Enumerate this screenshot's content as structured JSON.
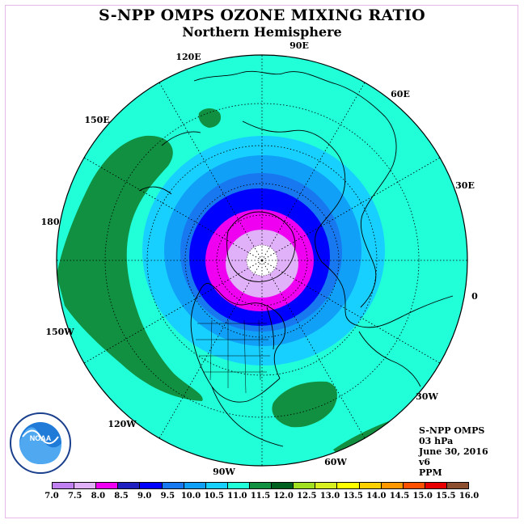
{
  "title": "S-NPP OMPS OZONE MIXING RATIO",
  "subtitle": "Northern Hemisphere",
  "longitude_labels": [
    {
      "text": "120E",
      "name": "lon-label-120e"
    },
    {
      "text": "90E",
      "name": "lon-label-90e"
    },
    {
      "text": "60E",
      "name": "lon-label-60e"
    },
    {
      "text": "150E",
      "name": "lon-label-150e"
    },
    {
      "text": "30E",
      "name": "lon-label-30e"
    },
    {
      "text": "180",
      "name": "lon-label-180"
    },
    {
      "text": "0",
      "name": "lon-label-0"
    },
    {
      "text": "150W",
      "name": "lon-label-150w"
    },
    {
      "text": "30W",
      "name": "lon-label-30w"
    },
    {
      "text": "120W",
      "name": "lon-label-120w"
    },
    {
      "text": "60W",
      "name": "lon-label-60w"
    },
    {
      "text": "90W",
      "name": "lon-label-90w"
    }
  ],
  "info": {
    "instrument": "S-NPP OMPS",
    "level": "03 hPa",
    "date": "June 30, 2016",
    "version": "v6",
    "units": "PPM"
  },
  "logo": {
    "text": "NOAA"
  },
  "colorbar": {
    "ticks": [
      "7.0",
      "7.5",
      "8.0",
      "8.5",
      "9.0",
      "9.5",
      "10.0",
      "10.5",
      "11.0",
      "11.5",
      "12.0",
      "12.5",
      "13.0",
      "13.5",
      "14.0",
      "14.5",
      "15.0",
      "15.5",
      "16.0"
    ],
    "colors": [
      "#c080f0",
      "#e0b0f8",
      "#f000f0",
      "#2020c0",
      "#0000ff",
      "#1878f0",
      "#10a0f8",
      "#18d0ff",
      "#20ffd8",
      "#109040",
      "#006020",
      "#a0e020",
      "#d8f020",
      "#ffff00",
      "#ffd000",
      "#ff9800",
      "#ff5000",
      "#e80000",
      "#8c5030"
    ]
  },
  "map_colors": {
    "ocean_background": "#20ffd8",
    "high_mix": "#109040",
    "polar_cap": "#ffffff"
  }
}
